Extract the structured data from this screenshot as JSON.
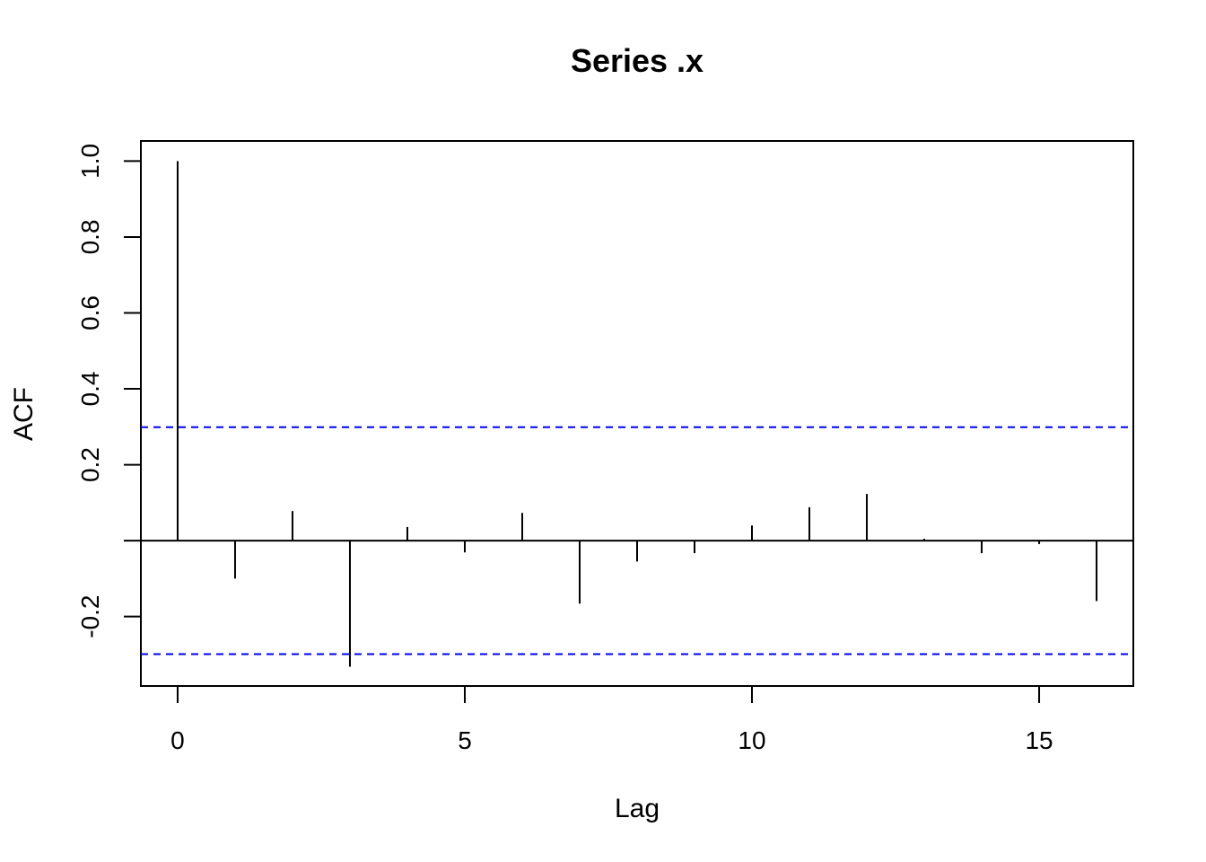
{
  "chart_data": {
    "type": "acf",
    "title": "Series  .x",
    "x_label": "Lag",
    "y_label": "ACF",
    "x": [
      0,
      1,
      2,
      3,
      4,
      5,
      6,
      7,
      8,
      9,
      10,
      11,
      12,
      13,
      14,
      15,
      16
    ],
    "values": [
      1.0,
      -0.1,
      0.078,
      -0.332,
      0.036,
      -0.031,
      0.073,
      -0.166,
      -0.055,
      -0.033,
      0.04,
      0.088,
      0.123,
      0.005,
      -0.033,
      -0.009,
      -0.159
    ],
    "color": "#000000",
    "ci": [
      0.299,
      -0.299
    ],
    "ci_color": "#0000ff",
    "xlim": [
      -0.64,
      16.64
    ],
    "ylim": [
      -0.383,
      1.053
    ],
    "xticks": [
      0,
      5,
      10,
      15
    ],
    "yticks": [
      {
        "value": -0.2,
        "label": "-0.2"
      },
      {
        "value": 0.2,
        "label": "0.2"
      },
      {
        "value": 0.4,
        "label": "0.4"
      },
      {
        "value": 0.6,
        "label": "0.6"
      },
      {
        "value": 0.8,
        "label": "0.8"
      },
      {
        "value": 1.0,
        "label": "1.0"
      }
    ]
  }
}
